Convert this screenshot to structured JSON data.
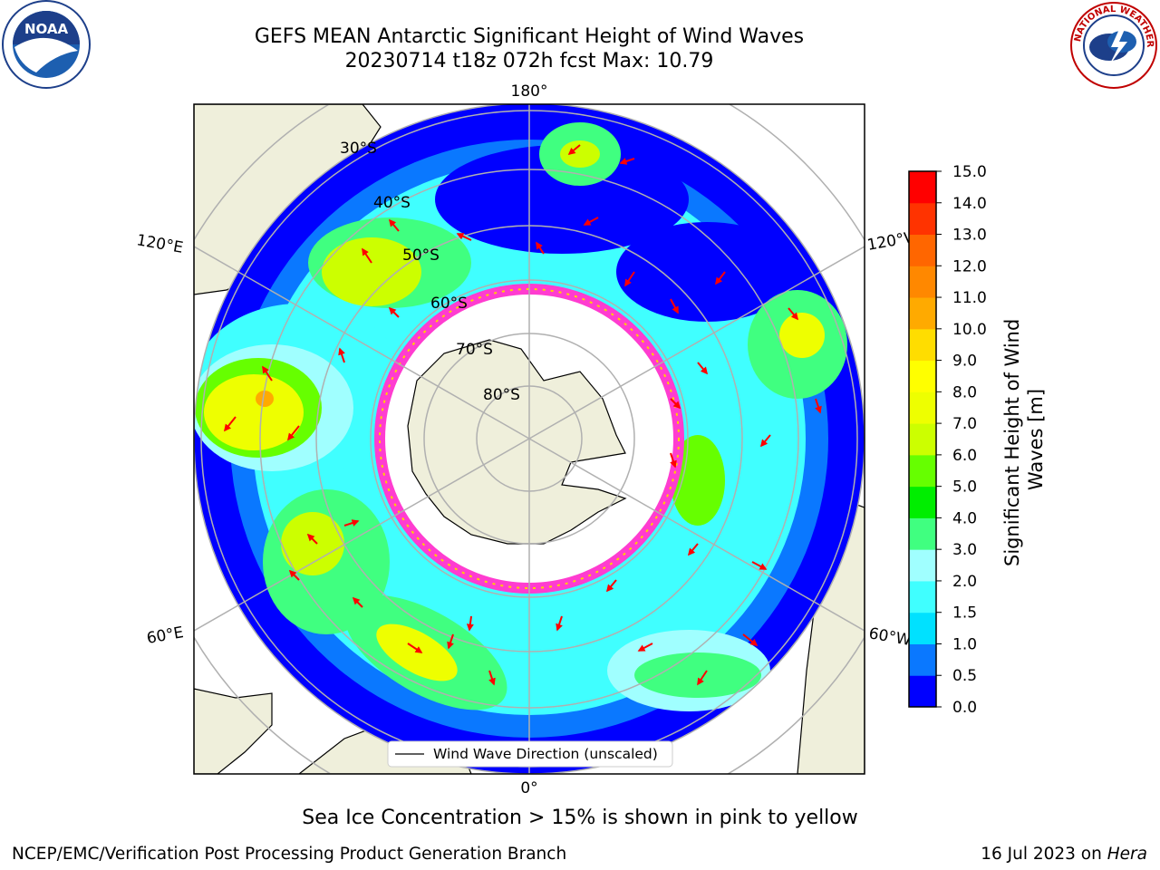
{
  "title": {
    "line1": "GEFS MEAN Antarctic Significant Height of Wind Waves",
    "line2": "20230714 t18z 072h fcst   Max: 10.79"
  },
  "logos": {
    "left_name": "NOAA",
    "left_ring": "NATIONAL OCEANIC AND ATMOSPHERIC ADMINISTRATION · U.S. DEPARTMENT OF COMMERCE",
    "right_ring": "NATIONAL WEATHER SERVICE"
  },
  "map": {
    "projection": "south-polar-stereographic",
    "lon_labels": {
      "top": "180°",
      "bottom": "0°",
      "upper_left": "120°E",
      "upper_right": "120°W",
      "lower_left": "60°E",
      "lower_right": "60°W"
    },
    "lat_labels": [
      "30°S",
      "40°S",
      "50°S",
      "60°S",
      "70°S",
      "80°S"
    ],
    "legend_label": "Wind Wave Direction (unscaled)",
    "arrow_color": "#ff0000",
    "land_color": "#efefdb",
    "grid_color": "#b0b0b0"
  },
  "colorbar": {
    "label": "Significant Height of Wind Waves [m]",
    "ticks": [
      "0.0",
      "0.5",
      "1.0",
      "1.5",
      "2.0",
      "3.0",
      "4.0",
      "5.0",
      "6.0",
      "7.0",
      "8.0",
      "9.0",
      "10.0",
      "11.0",
      "12.0",
      "13.0",
      "14.0",
      "15.0"
    ],
    "colors": [
      "#0000ff",
      "#0a78ff",
      "#00e1ff",
      "#40ffff",
      "#a0ffff",
      "#40ff80",
      "#00ee00",
      "#66ff00",
      "#ccff00",
      "#eeff00",
      "#ffff00",
      "#ffdd00",
      "#ffaa00",
      "#ff8800",
      "#ff6600",
      "#ff3300",
      "#ff0000"
    ]
  },
  "note": "Sea Ice Concentration > 15% is shown in pink to yellow",
  "footer": {
    "org": "NCEP/EMC/Verification Post Processing Product Generation Branch",
    "date": "16 Jul 2023 on",
    "system": "Hera"
  }
}
